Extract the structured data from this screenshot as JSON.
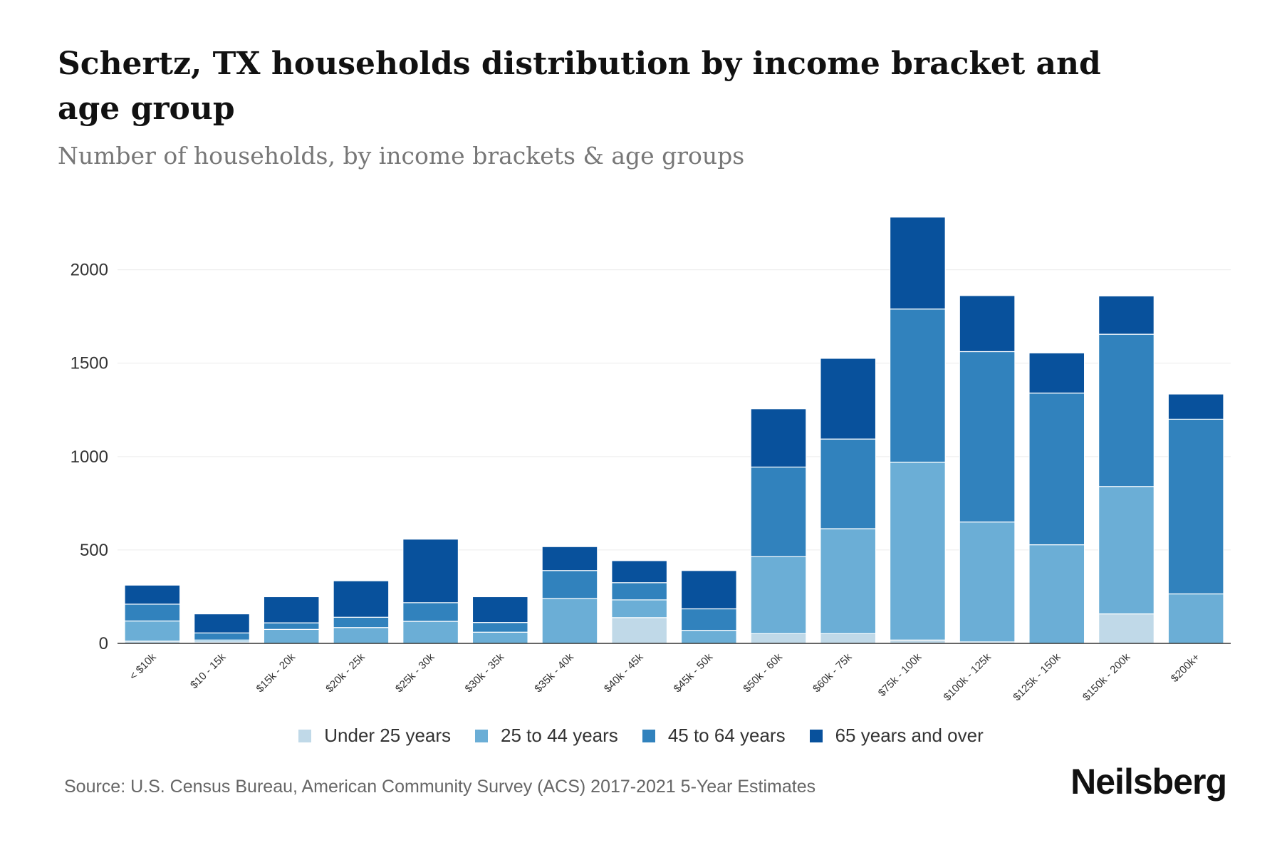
{
  "header": {
    "title": "Schertz, TX households distribution by income bracket and age group",
    "subtitle": "Number of households, by income brackets & age groups"
  },
  "footer": {
    "source": "Source: U.S. Census Bureau, American Community Survey (ACS) 2017-2021 5-Year Estimates",
    "logo": "Neilsberg"
  },
  "chart_data": {
    "type": "bar",
    "stacked": true,
    "title": "Schertz, TX households distribution by income bracket and age group",
    "subtitle": "Number of households, by income brackets & age groups",
    "xlabel": "",
    "ylabel": "",
    "ylim": [
      0,
      2300
    ],
    "yticks": [
      0,
      500,
      1000,
      1500,
      2000
    ],
    "grid": true,
    "legend_position": "bottom",
    "categories": [
      "< $10k",
      "$10 - 15k",
      "$15k - 20k",
      "$20k - 25k",
      "$25k - 30k",
      "$30k - 35k",
      "$35k - 40k",
      "$40k - 45k",
      "$45k - 50k",
      "$50k - 60k",
      "$60k - 75k",
      "$75k - 100k",
      "$100k - 125k",
      "$125k - 150k",
      "$150k - 200k",
      "$200k+"
    ],
    "series": [
      {
        "name": "Under 25 years",
        "color": "#c0d9e8",
        "values": [
          12,
          8,
          0,
          0,
          0,
          0,
          0,
          138,
          0,
          52,
          52,
          18,
          8,
          0,
          158,
          0
        ]
      },
      {
        "name": "25 to 44 years",
        "color": "#6baed6",
        "values": [
          108,
          10,
          75,
          85,
          118,
          60,
          240,
          95,
          70,
          412,
          562,
          952,
          642,
          528,
          682,
          265
        ]
      },
      {
        "name": "45 to 64 years",
        "color": "#3182bd",
        "values": [
          90,
          38,
          35,
          55,
          100,
          52,
          150,
          92,
          115,
          480,
          480,
          820,
          912,
          812,
          815,
          935
        ]
      },
      {
        "name": "65 years and over",
        "color": "#08519c",
        "values": [
          102,
          102,
          140,
          195,
          340,
          138,
          128,
          118,
          205,
          312,
          432,
          492,
          300,
          215,
          205,
          135
        ]
      }
    ]
  }
}
